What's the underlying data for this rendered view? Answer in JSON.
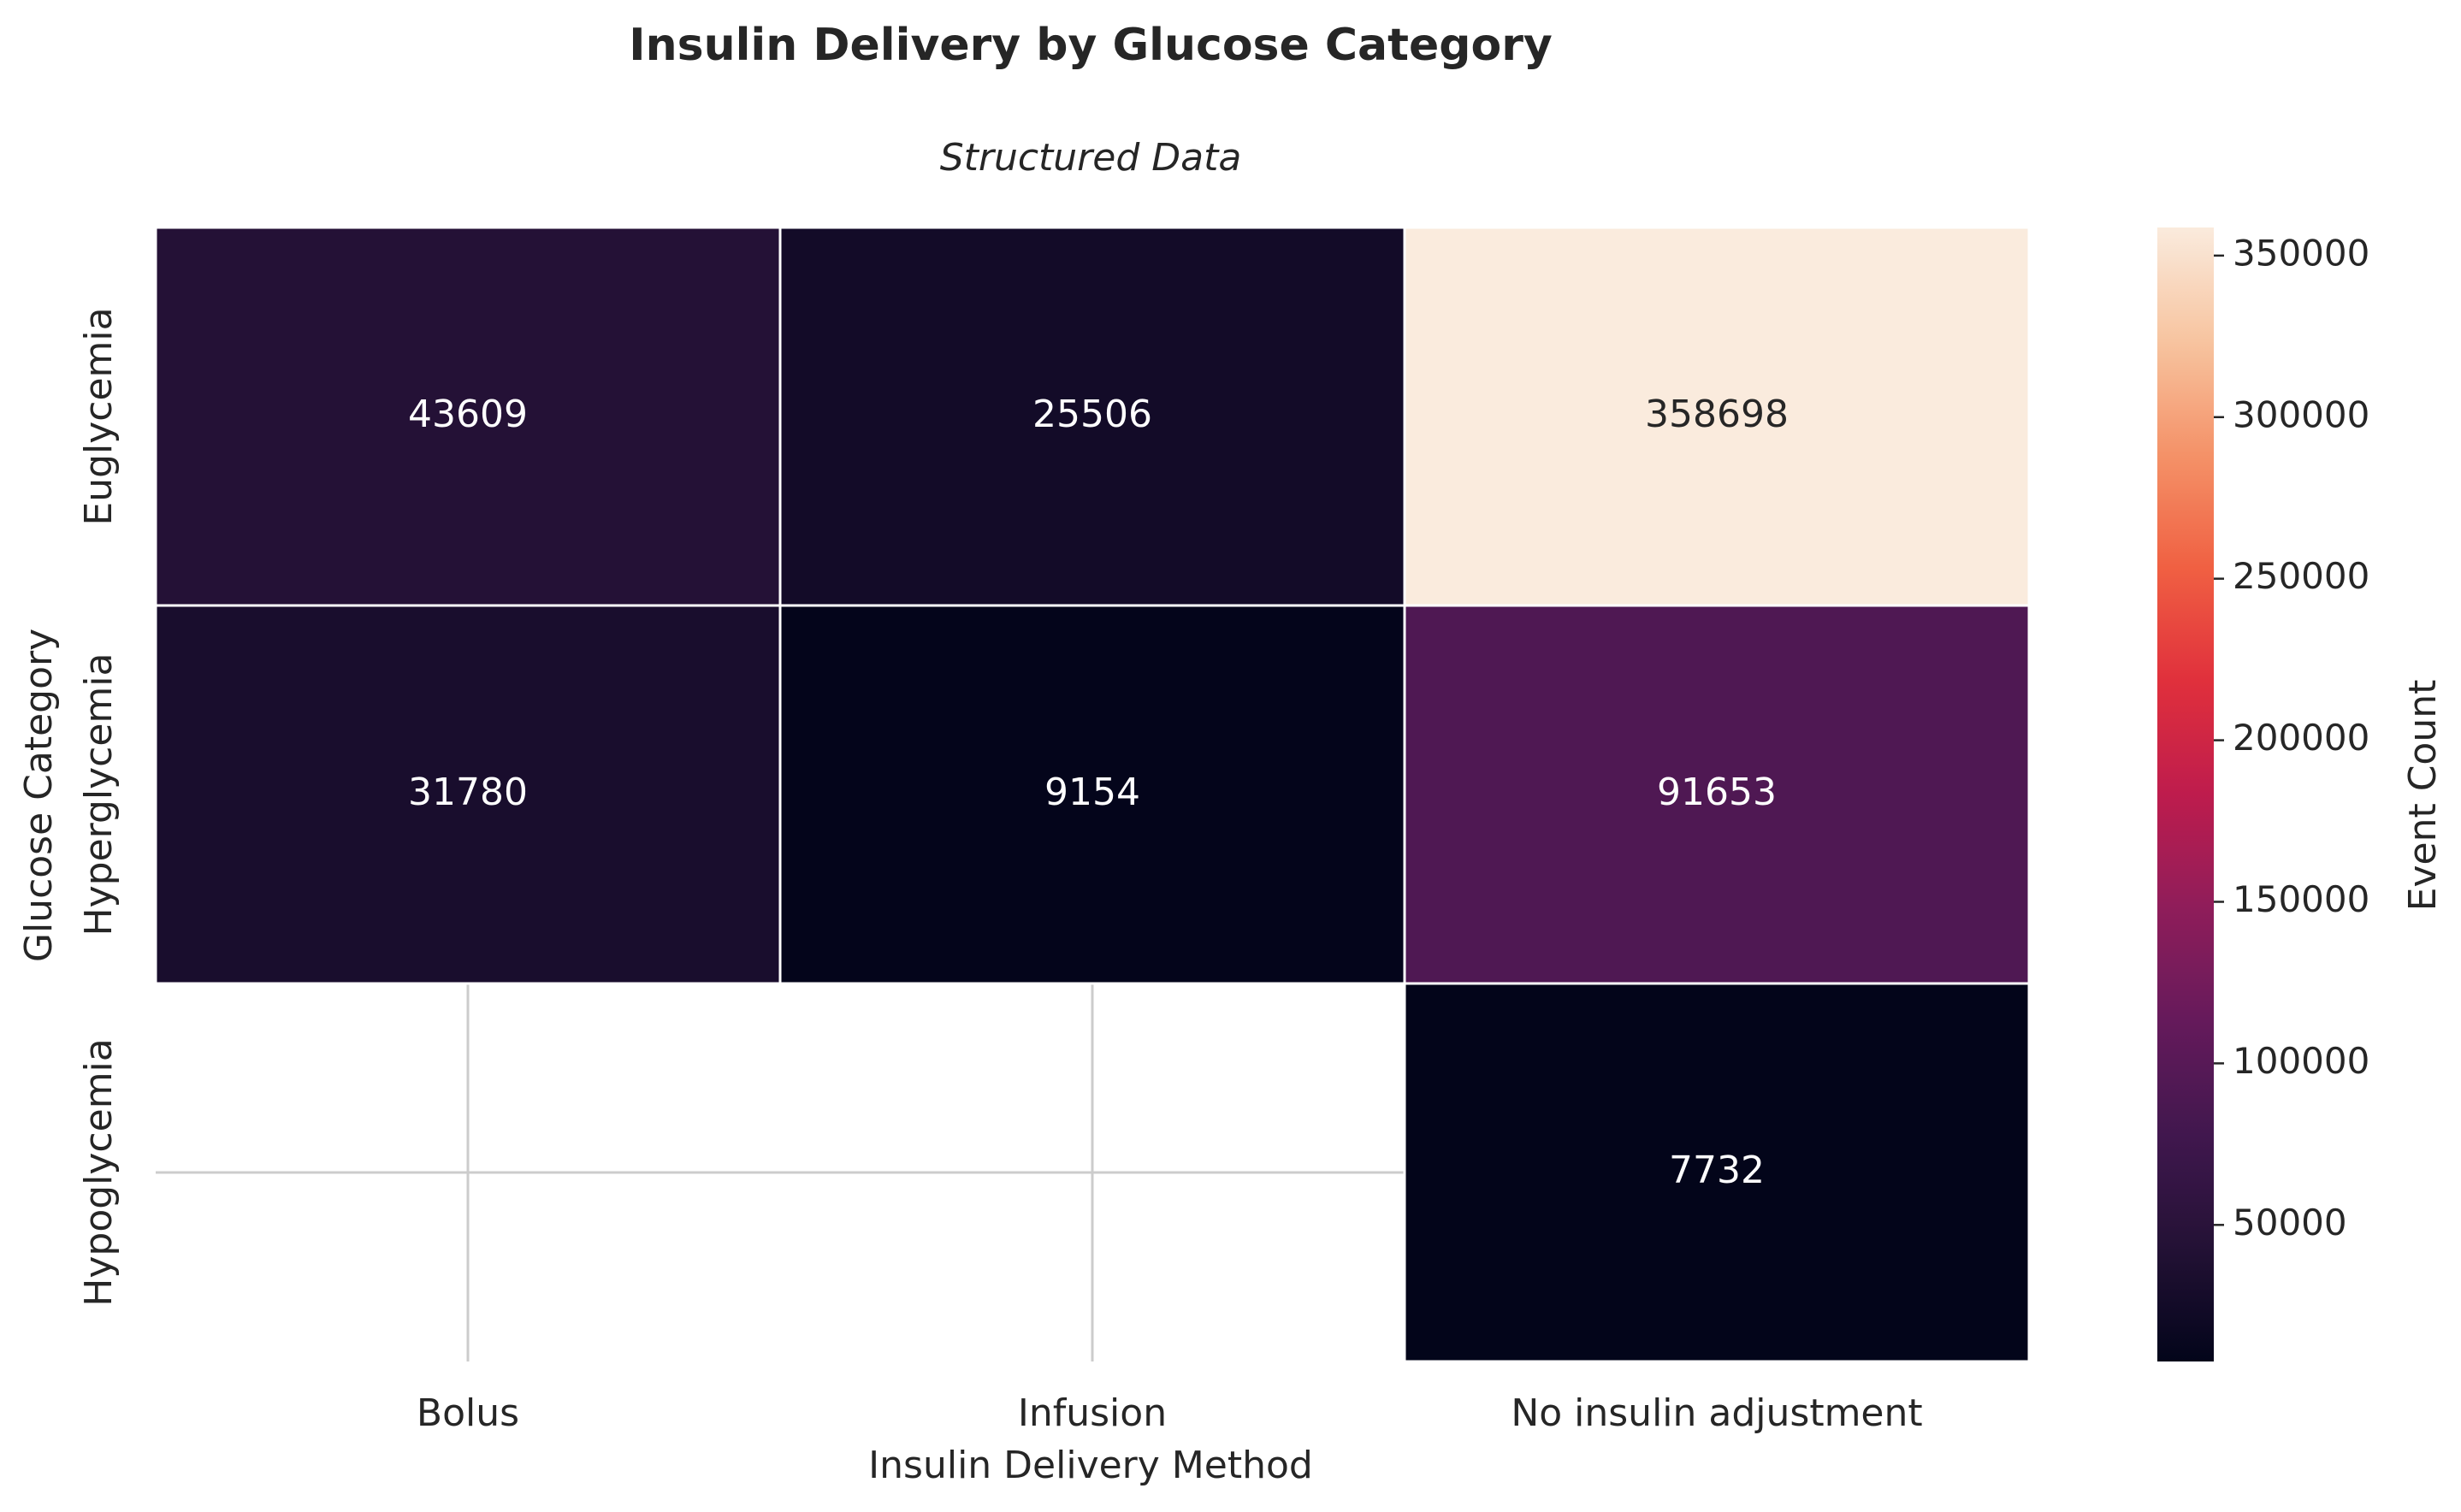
{
  "chart_data": {
    "type": "heatmap",
    "title": "Insulin Delivery by Glucose Category",
    "subtitle": "Structured Data",
    "xlabel": "Insulin Delivery Method",
    "ylabel": "Glucose Category",
    "x_categories": [
      "Bolus",
      "Infusion",
      "No insulin adjustment"
    ],
    "y_categories": [
      "Euglycemia",
      "Hyperglycemia",
      "Hypoglycemia"
    ],
    "values": [
      [
        43609,
        25506,
        358698
      ],
      [
        31780,
        9154,
        91653
      ],
      [
        null,
        null,
        7732
      ]
    ],
    "colorbar": {
      "label": "Event Count",
      "vmin": 7732,
      "vmax": 358698,
      "ticks": [
        50000,
        100000,
        150000,
        200000,
        250000,
        300000,
        350000
      ],
      "tick_labels": [
        "50000",
        "100000",
        "150000",
        "200000",
        "250000",
        "300000",
        "350000"
      ]
    },
    "colormap": "rocket",
    "grid": true
  }
}
